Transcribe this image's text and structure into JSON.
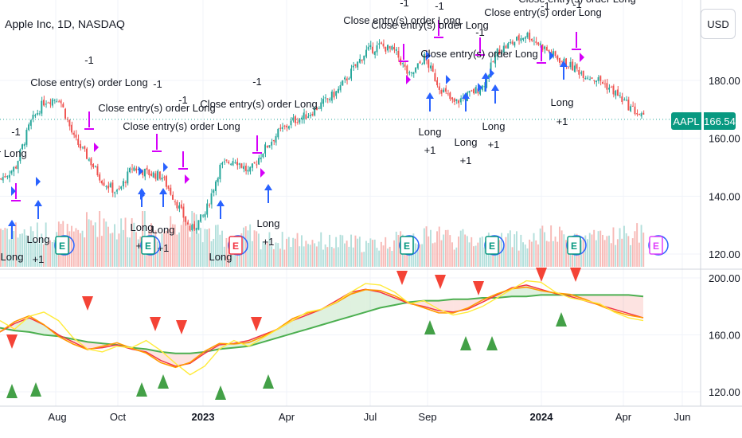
{
  "header": {
    "title": "Apple Inc, 1D, NASDAQ",
    "currency_button": "USD"
  },
  "price_tag": {
    "symbol": "AAPL",
    "value": "166.54",
    "color": "#089981"
  },
  "colors": {
    "up": "#26a69a",
    "down": "#ef5350",
    "volume_up": "#b2dfdb",
    "volume_down": "#f7b9b6",
    "buy_arrow": "#2962ff",
    "exit_marker": "#d500f9",
    "ma_fast": "#ffeb3b",
    "ma_mid": "#ff9800",
    "ma_red": "#f23645",
    "ma_slow": "#4caf50",
    "tri_up": "#43a047",
    "tri_down": "#f44336",
    "earnings": "#089981"
  },
  "chart_data": [
    {
      "type": "candlestick",
      "title": "Apple Inc, 1D, NASDAQ",
      "x_tick_labels": [
        "Aug",
        "Oct",
        "2023",
        "Apr",
        "Jul",
        "Sep",
        "2024",
        "Apr",
        "Jun"
      ],
      "y_tick_labels": [
        "180.00",
        "160.00",
        "140.00",
        "120.00"
      ],
      "ylim": [
        115,
        205
      ],
      "last_price": 166.54,
      "close_series": {
        "x": [
          "2022-07-01",
          "2022-07-15",
          "2022-08-01",
          "2022-08-15",
          "2022-08-20",
          "2022-09-01",
          "2022-09-15",
          "2022-10-01",
          "2022-10-15",
          "2022-11-01",
          "2022-11-15",
          "2022-12-01",
          "2022-12-15",
          "2023-01-01",
          "2023-01-15",
          "2023-02-01",
          "2023-02-15",
          "2023-03-01",
          "2023-03-15",
          "2023-04-01",
          "2023-04-15",
          "2023-05-01",
          "2023-05-15",
          "2023-06-01",
          "2023-06-15",
          "2023-07-01",
          "2023-07-15",
          "2023-08-01",
          "2023-08-15",
          "2023-09-01",
          "2023-09-15",
          "2023-10-01",
          "2023-10-15",
          "2023-11-01",
          "2023-11-15",
          "2023-12-01",
          "2023-12-15",
          "2024-01-01",
          "2024-01-15",
          "2024-02-01",
          "2024-02-15",
          "2024-03-01",
          "2024-03-15",
          "2024-04-01",
          "2024-04-15"
        ],
        "y": [
          146,
          150,
          165,
          173,
          174,
          160,
          153,
          145,
          141,
          150,
          148,
          147,
          138,
          128,
          134,
          150,
          153,
          148,
          156,
          162,
          166,
          168,
          172,
          176,
          183,
          190,
          192,
          190,
          181,
          188,
          178,
          172,
          175,
          178,
          190,
          193,
          196,
          192,
          188,
          185,
          182,
          180,
          176,
          171,
          167
        ]
      },
      "volume_series": [
        75,
        70,
        60,
        65,
        72,
        55,
        80,
        90,
        70,
        85,
        78,
        60,
        95,
        88,
        62,
        58,
        55,
        60,
        50,
        48,
        52,
        50,
        48,
        45,
        46,
        42,
        44,
        48,
        60,
        55,
        68,
        50,
        54,
        49,
        47,
        52,
        44,
        60,
        56,
        58,
        54,
        50,
        62,
        58,
        70
      ]
    },
    {
      "type": "line",
      "y_tick_labels": [
        "200.00",
        "160.00",
        "120.00"
      ],
      "ylim": [
        115,
        205
      ],
      "series": [
        {
          "values": [
            170,
            164,
            173,
            176,
            170,
            158,
            150,
            148,
            152,
            151,
            156,
            149,
            140,
            132,
            138,
            150,
            156,
            152,
            158,
            164,
            170,
            176,
            178,
            183,
            190,
            196,
            195,
            190,
            182,
            184,
            178,
            174,
            176,
            180,
            186,
            192,
            198,
            197,
            190,
            186,
            184,
            182,
            176,
            172,
            170
          ]
        },
        {
          "values": [
            162,
            168,
            172,
            167,
            160,
            155,
            150,
            151,
            153,
            150,
            148,
            142,
            138,
            140,
            147,
            153,
            154,
            156,
            160,
            164,
            170,
            174,
            178,
            184,
            190,
            192,
            190,
            186,
            182,
            180,
            177,
            176,
            178,
            183,
            188,
            193,
            195,
            192,
            189,
            187,
            184,
            181,
            178,
            175,
            172
          ]
        },
        {
          "values": [
            165,
            163,
            162,
            160,
            159,
            157,
            155,
            154,
            153,
            151,
            150,
            148,
            147,
            147,
            148,
            150,
            151,
            152,
            155,
            158,
            161,
            164,
            167,
            170,
            173,
            176,
            179,
            181,
            183,
            184,
            184,
            185,
            185,
            186,
            186,
            187,
            187,
            188,
            188,
            188,
            188,
            188,
            188,
            188,
            187
          ]
        }
      ]
    }
  ],
  "signals": {
    "close_label": "Close entry(s) order Long",
    "long_label": "Long",
    "plus_one": "+1",
    "minus_one": "-1",
    "earnings_letter": "E",
    "x_positions": [
      15,
      178,
      277,
      337,
      540,
      585,
      610,
      705
    ]
  }
}
